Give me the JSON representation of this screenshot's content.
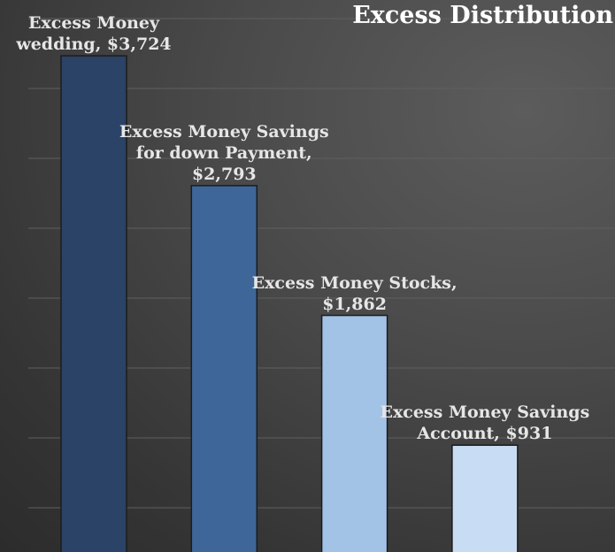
{
  "chart_data": {
    "type": "bar",
    "title": "Excess Distribution",
    "categories": [
      "Excess Money wedding",
      "Excess Money Savings for down Payment",
      "Excess Money Stocks",
      "Excess Money Savings Account"
    ],
    "values": [
      3724,
      2793,
      1862,
      931
    ],
    "data_labels": [
      [
        "Excess Money",
        "wedding, $3,724"
      ],
      [
        "Excess Money Savings",
        "for down Payment,",
        "$2,793"
      ],
      [
        "Excess Money Stocks,",
        "$1,862"
      ],
      [
        "Excess Money Savings",
        "Account, $931"
      ]
    ],
    "colors": [
      "#2a4366",
      "#3e6698",
      "#a2c2e6",
      "#c8ddf3"
    ],
    "grid": true,
    "legend": "none"
  }
}
